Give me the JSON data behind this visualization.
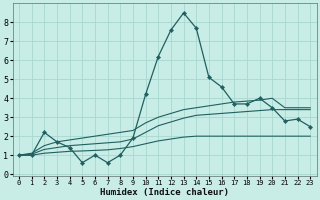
{
  "xlabel": "Humidex (Indice chaleur)",
  "xlim": [
    -0.5,
    23.5
  ],
  "ylim": [
    -0.1,
    9.0
  ],
  "yticks": [
    0,
    1,
    2,
    3,
    4,
    5,
    6,
    7,
    8
  ],
  "xticks": [
    0,
    1,
    2,
    3,
    4,
    5,
    6,
    7,
    8,
    9,
    10,
    11,
    12,
    13,
    14,
    15,
    16,
    17,
    18,
    19,
    20,
    21,
    22,
    23
  ],
  "bg_color": "#c8ece6",
  "line_color": "#206060",
  "grid_color": "#a8d8d0",
  "series": {
    "main": [
      1.0,
      1.0,
      2.2,
      1.7,
      1.4,
      0.6,
      1.0,
      0.6,
      1.0,
      1.9,
      4.2,
      6.2,
      7.6,
      8.5,
      7.7,
      5.1,
      4.6,
      3.7,
      3.7,
      4.0,
      3.5,
      2.8,
      2.9,
      2.5
    ],
    "trend1": [
      1.0,
      1.1,
      1.5,
      1.7,
      1.8,
      1.9,
      2.0,
      2.1,
      2.2,
      2.3,
      2.7,
      3.0,
      3.2,
      3.4,
      3.5,
      3.6,
      3.7,
      3.8,
      3.85,
      3.9,
      4.0,
      3.5,
      3.5,
      3.5
    ],
    "trend2": [
      1.0,
      1.05,
      1.3,
      1.4,
      1.5,
      1.55,
      1.6,
      1.65,
      1.7,
      1.85,
      2.2,
      2.55,
      2.75,
      2.95,
      3.1,
      3.15,
      3.2,
      3.25,
      3.3,
      3.35,
      3.4,
      3.4,
      3.4,
      3.4
    ],
    "trend3": [
      1.0,
      1.0,
      1.1,
      1.15,
      1.2,
      1.22,
      1.25,
      1.28,
      1.35,
      1.45,
      1.6,
      1.75,
      1.85,
      1.95,
      2.0,
      2.0,
      2.0,
      2.0,
      2.0,
      2.0,
      2.0,
      2.0,
      2.0,
      2.0
    ]
  }
}
